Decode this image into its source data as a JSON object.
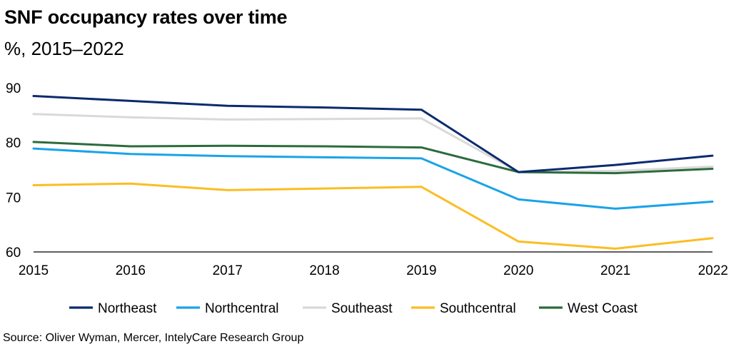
{
  "chart_data": {
    "type": "line",
    "title": "SNF occupancy rates over time",
    "subtitle": "%, 2015–2022",
    "x": [
      "2015",
      "2016",
      "2017",
      "2018",
      "2019",
      "2020",
      "2021",
      "2022"
    ],
    "yticks": [
      "90",
      "80",
      "70",
      "60"
    ],
    "ylim": [
      60,
      90
    ],
    "grid": false,
    "legend_position": "bottom",
    "series": [
      {
        "name": "Northeast",
        "color": "#0b2a6f",
        "values": [
          88.5,
          87.6,
          86.7,
          86.4,
          86.0,
          74.6,
          75.9,
          77.6
        ]
      },
      {
        "name": "Northcentral",
        "color": "#1aa3e8",
        "values": [
          78.9,
          77.9,
          77.5,
          77.3,
          77.1,
          69.6,
          67.9,
          69.2
        ]
      },
      {
        "name": "Southeast",
        "color": "#d9d9d9",
        "values": [
          85.2,
          84.6,
          84.2,
          84.3,
          84.4,
          74.6,
          74.8,
          75.6
        ]
      },
      {
        "name": "Southcentral",
        "color": "#fbbd22",
        "values": [
          72.2,
          72.5,
          71.3,
          71.6,
          71.9,
          61.9,
          60.6,
          62.5
        ]
      },
      {
        "name": "West Coast",
        "color": "#2c6b3c",
        "values": [
          80.1,
          79.3,
          79.4,
          79.3,
          79.1,
          74.6,
          74.4,
          75.2
        ]
      }
    ],
    "source": "Source: Oliver Wyman, Mercer, IntelyCare Research Group"
  }
}
